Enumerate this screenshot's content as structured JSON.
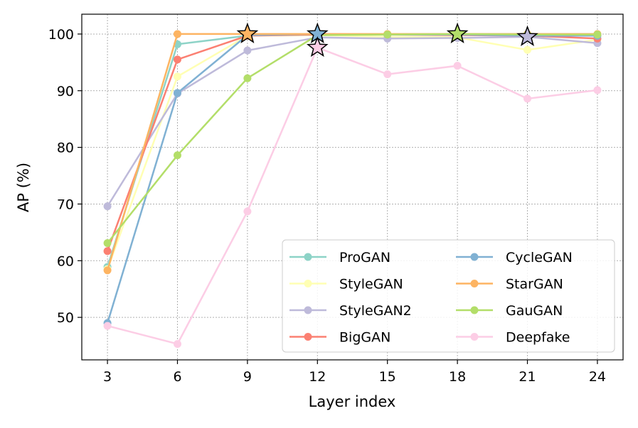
{
  "chart_data": {
    "type": "line",
    "title": "",
    "xlabel": "Layer index",
    "ylabel": "AP (%)",
    "x": [
      3,
      6,
      9,
      12,
      15,
      18,
      21,
      24
    ],
    "xlim": [
      1.9,
      25.1
    ],
    "ylim": [
      42.5,
      103.5
    ],
    "yticks": [
      50,
      60,
      70,
      80,
      90,
      100
    ],
    "grid": true,
    "legend_position": "lower-right",
    "legend_columns": 2,
    "series": [
      {
        "name": "ProGAN",
        "color": "#8dd3c7",
        "values": [
          58.9,
          98.2,
          99.7,
          99.9,
          99.9,
          99.9,
          99.9,
          99.9
        ],
        "best_index": -1
      },
      {
        "name": "StyleGAN",
        "color": "#ffffb3",
        "values": [
          58.5,
          92.5,
          99.7,
          99.8,
          99.5,
          99.4,
          97.2,
          99.0
        ],
        "best_index": -1
      },
      {
        "name": "StyleGAN2",
        "color": "#bebada",
        "values": [
          69.6,
          89.5,
          97.1,
          99.4,
          99.2,
          99.3,
          99.5,
          98.4
        ],
        "best_index": 6
      },
      {
        "name": "BigGAN",
        "color": "#fb8072",
        "values": [
          61.7,
          95.5,
          99.7,
          99.9,
          99.9,
          99.8,
          99.7,
          99.2
        ],
        "best_index": -1
      },
      {
        "name": "CycleGAN",
        "color": "#80b1d3",
        "values": [
          49.0,
          89.6,
          99.8,
          100.0,
          99.9,
          99.9,
          99.7,
          99.7
        ],
        "best_index": 3
      },
      {
        "name": "StarGAN",
        "color": "#fdb462",
        "values": [
          58.3,
          100.0,
          100.0,
          100.0,
          100.0,
          100.0,
          100.0,
          100.0
        ],
        "best_index": 2
      },
      {
        "name": "GauGAN",
        "color": "#b3de69",
        "values": [
          63.1,
          78.6,
          92.2,
          99.8,
          99.9,
          100.0,
          99.9,
          99.9
        ],
        "best_index": 5
      },
      {
        "name": "Deepfake",
        "color": "#fccde5",
        "values": [
          48.5,
          45.3,
          68.7,
          97.6,
          92.9,
          94.4,
          88.6,
          90.1
        ],
        "best_index": 3
      }
    ]
  }
}
